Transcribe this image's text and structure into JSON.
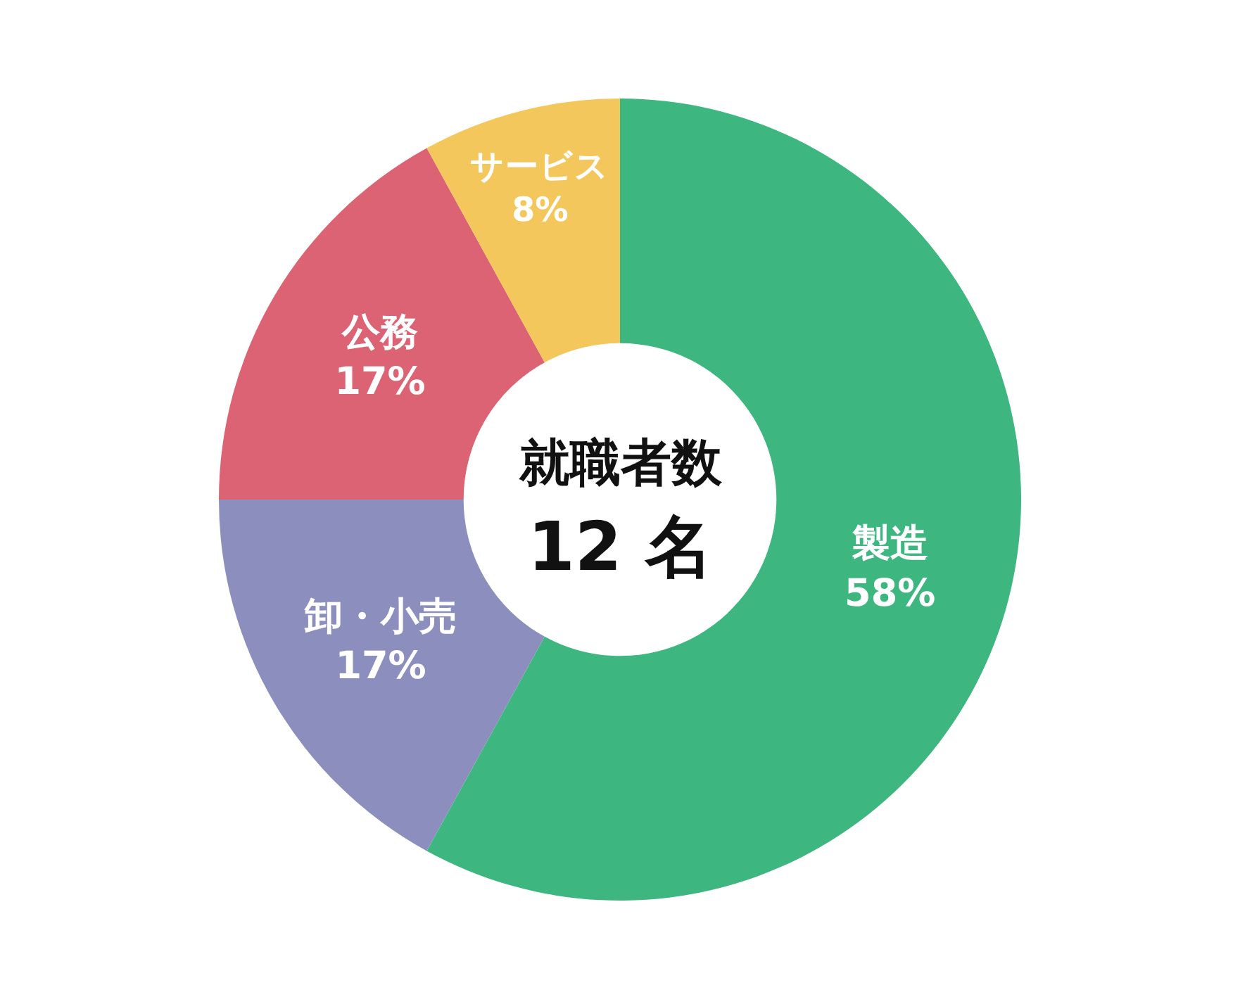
{
  "chart_data": {
    "type": "donut",
    "categories": [
      "製造",
      "卸・小売",
      "公務",
      "サービス"
    ],
    "values": [
      58,
      17,
      17,
      8
    ],
    "value_labels": [
      "58%",
      "17%",
      "17%",
      "8%"
    ],
    "colors": [
      "#3eb680",
      "#8c8fbe",
      "#dc6373",
      "#f3c75c"
    ],
    "annotations": [
      "就職者数",
      "12 名"
    ],
    "legend": false
  }
}
